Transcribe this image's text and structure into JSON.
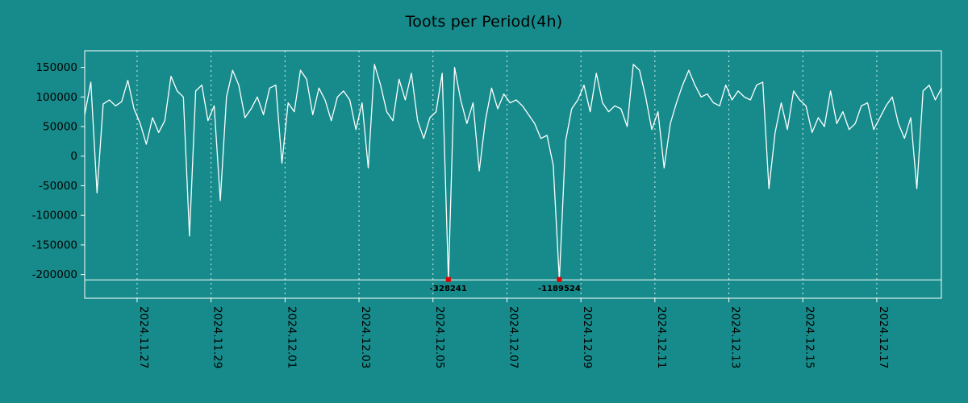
{
  "chart_data": {
    "type": "line",
    "title": "Toots per Period(4h)",
    "period": "4h",
    "background_color": "#178b8b",
    "line_color": "#ffffff",
    "marker_color": "#dd0000",
    "text_color": "#000000",
    "grid": "vertical-dashed",
    "legend": "none",
    "x_step_hours": 4,
    "x_start_day_offset": -0.4167,
    "x_ticks": [
      {
        "label": "2024.11.27",
        "day": 1
      },
      {
        "label": "2024.11.29",
        "day": 3
      },
      {
        "label": "2024.12.01",
        "day": 5
      },
      {
        "label": "2024.12.03",
        "day": 7
      },
      {
        "label": "2024.12.05",
        "day": 9
      },
      {
        "label": "2024.12.07",
        "day": 11
      },
      {
        "label": "2024.12.09",
        "day": 13
      },
      {
        "label": "2024.12.11",
        "day": 15
      },
      {
        "label": "2024.12.13",
        "day": 17
      },
      {
        "label": "2024.12.15",
        "day": 19
      },
      {
        "label": "2024.12.17",
        "day": 21
      }
    ],
    "y_ticks": [
      150000,
      100000,
      50000,
      0,
      -50000,
      -100000,
      -150000,
      -200000
    ],
    "ylim_display": [
      -240000,
      178000
    ],
    "clip_display_value": -209000,
    "clipped_annotations": [
      {
        "value": -328241,
        "label": "-328241"
      },
      {
        "value": -1189524,
        "label": "-1189524"
      }
    ],
    "values": [
      70000,
      125000,
      -62000,
      88000,
      95000,
      85000,
      92000,
      128000,
      80000,
      55000,
      20000,
      65000,
      40000,
      60000,
      135000,
      110000,
      100000,
      -135000,
      110000,
      120000,
      60000,
      85000,
      -75000,
      100000,
      145000,
      120000,
      65000,
      80000,
      100000,
      70000,
      115000,
      120000,
      -12000,
      90000,
      75000,
      145000,
      130000,
      70000,
      115000,
      95000,
      60000,
      100000,
      110000,
      95000,
      45000,
      90000,
      -20000,
      155000,
      120000,
      75000,
      60000,
      130000,
      95000,
      140000,
      60000,
      30000,
      65000,
      75000,
      140000,
      -328241,
      150000,
      95000,
      55000,
      90000,
      -25000,
      60000,
      115000,
      80000,
      105000,
      90000,
      95000,
      85000,
      70000,
      55000,
      30000,
      35000,
      -15000,
      -1189524,
      25000,
      80000,
      95000,
      120000,
      75000,
      140000,
      90000,
      75000,
      85000,
      80000,
      50000,
      155000,
      145000,
      100000,
      45000,
      75000,
      -20000,
      55000,
      90000,
      120000,
      145000,
      120000,
      100000,
      105000,
      90000,
      85000,
      120000,
      95000,
      110000,
      100000,
      95000,
      120000,
      125000,
      -55000,
      40000,
      90000,
      45000,
      110000,
      95000,
      85000,
      40000,
      65000,
      50000,
      110000,
      55000,
      75000,
      45000,
      55000,
      85000,
      90000,
      45000,
      65000,
      85000,
      100000,
      55000,
      30000,
      65000,
      -55000,
      110000,
      120000,
      95000,
      115000
    ]
  }
}
